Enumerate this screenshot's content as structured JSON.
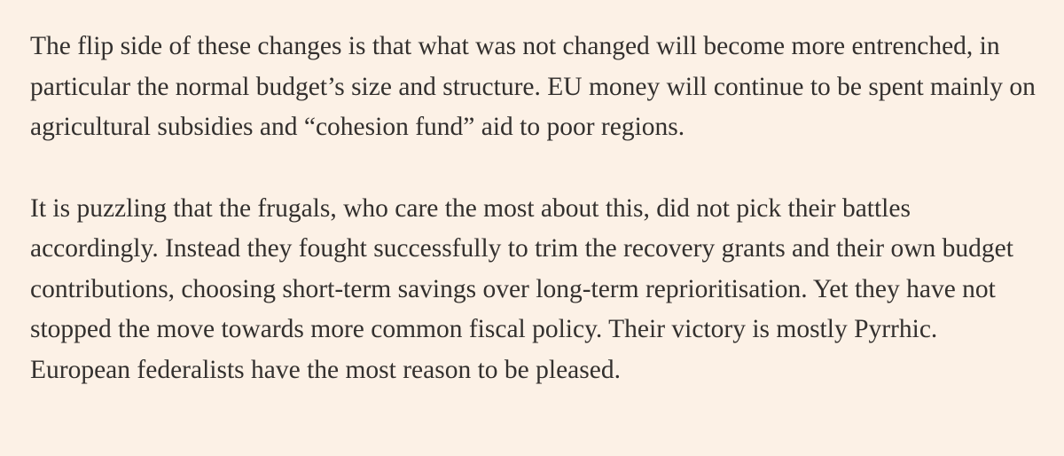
{
  "article": {
    "paragraphs": [
      "The flip side of these changes is that what was not changed will become more entrenched, in particular the normal budget’s size and structure. EU money will continue to be spent mainly on agricultural subsidies and “cohesion fund” aid to poor regions.",
      "It is puzzling that the frugals, who care the most about this, did not pick their battles accordingly. Instead they fought successfully to trim the recovery grants and their own budget contributions, choosing short-term savings over long-term reprioritisation. Yet they have not stopped the move towards more common fiscal policy. Their victory is mostly Pyrrhic. European federalists have the most reason to be pleased."
    ]
  },
  "colors": {
    "background": "#fcf1e6",
    "text": "#33302e"
  }
}
